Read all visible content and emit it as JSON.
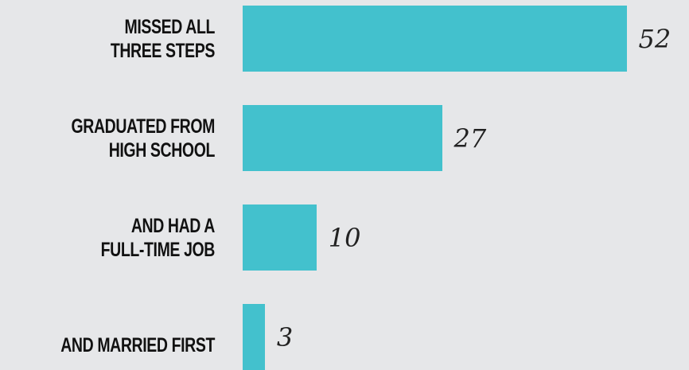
{
  "chart_data": {
    "type": "bar",
    "orientation": "horizontal",
    "categories": [
      "MISSED ALL\nTHREE STEPS",
      "GRADUATED FROM\nHIGH SCHOOL",
      "AND HAD A\nFULL-TIME JOB",
      "AND MARRIED FIRST"
    ],
    "values": [
      52,
      27,
      10,
      3
    ],
    "color": "#43c1cd"
  }
}
